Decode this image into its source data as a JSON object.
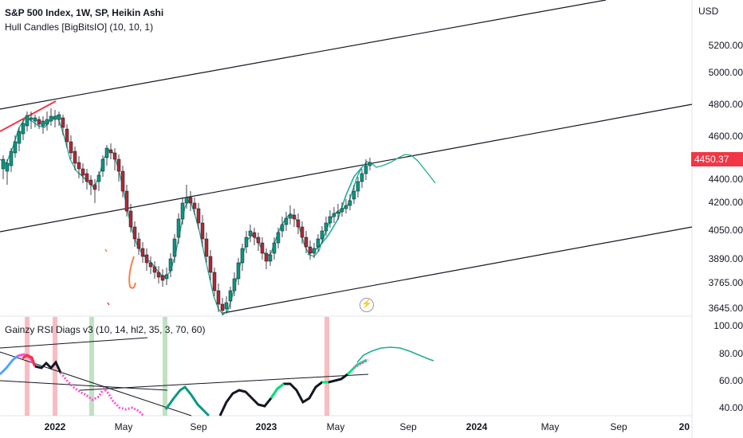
{
  "header": {
    "symbol_line": "S&P 500 Index, 1W, SP, Heikin Ashi",
    "indicator_line": "Hull Candles [BigBitsIO] (10, 10, 1)"
  },
  "price_axis": {
    "currency": "USD",
    "labels": [
      "5200.00",
      "5000.00",
      "4800.00",
      "4600.00",
      "4400.00",
      "4200.00",
      "4050.00",
      "3890.00",
      "3765.00",
      "3645.00"
    ],
    "current_price": "4450.37",
    "current_price_color": "#f23645"
  },
  "rsi_pane": {
    "title": "Gainzy RSI Diags v3 (10, 14, hl2, 35, 3, 70, 60)",
    "labels": [
      "100.00",
      "80.00",
      "60.00",
      "40.00"
    ]
  },
  "time_axis": {
    "labels": [
      "2022",
      "May",
      "Sep",
      "2023",
      "May",
      "Sep",
      "2024",
      "May",
      "Sep",
      "20"
    ]
  },
  "icons": {
    "replay": "lightning-icon"
  },
  "colors": {
    "bull_candle": "#089981",
    "bear_candle": "#b22833",
    "hull_line": "#22ab94",
    "trendline": "#000000",
    "rsi_pink": "#ff4fd8",
    "rsi_green": "#00e676",
    "rsi_dark": "#131722",
    "highlight_red": "#f7a1a7",
    "highlight_green": "#a5d6a7"
  }
}
